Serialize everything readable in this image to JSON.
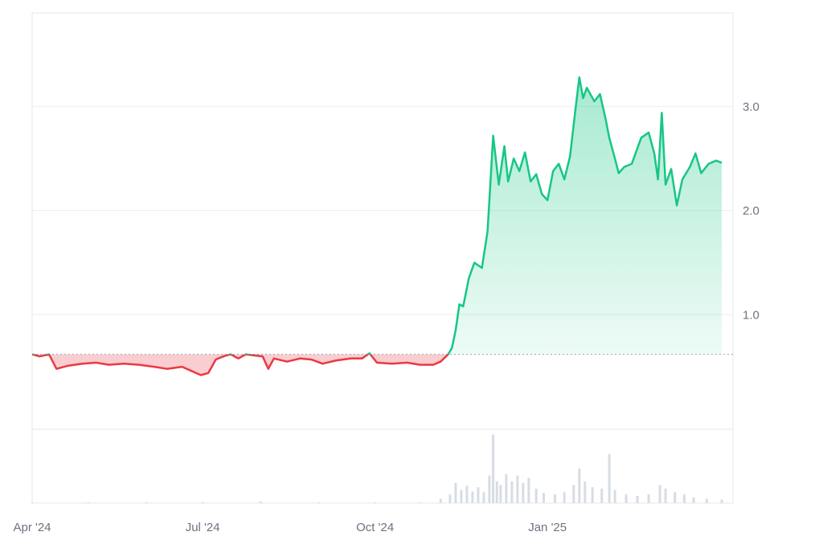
{
  "chart_data": {
    "type": "area",
    "baseline": 0.62,
    "ylim": [
      -0.1,
      3.9
    ],
    "y_ticks": [
      {
        "value": 1.0,
        "label": "1.0"
      },
      {
        "value": 2.0,
        "label": "2.0"
      },
      {
        "value": 3.0,
        "label": "3.0"
      }
    ],
    "x_range": [
      "2024-04-01",
      "2025-04-10"
    ],
    "x_ticks": [
      {
        "date": "2024-04-01",
        "label": "Apr '24"
      },
      {
        "date": "2024-07-01",
        "label": "Jul '24"
      },
      {
        "date": "2024-10-01",
        "label": "Oct '24"
      },
      {
        "date": "2025-01-01",
        "label": "Jan '25"
      }
    ],
    "grid": true,
    "colors": {
      "above": "#16c784",
      "below": "#ea3943"
    },
    "series": [
      {
        "kind": "price",
        "points": [
          [
            "2024-04-01",
            0.62
          ],
          [
            "2024-04-05",
            0.6
          ],
          [
            "2024-04-10",
            0.62
          ],
          [
            "2024-04-14",
            0.48
          ],
          [
            "2024-04-20",
            0.51
          ],
          [
            "2024-04-28",
            0.53
          ],
          [
            "2024-05-05",
            0.54
          ],
          [
            "2024-05-12",
            0.52
          ],
          [
            "2024-05-20",
            0.53
          ],
          [
            "2024-05-28",
            0.52
          ],
          [
            "2024-06-05",
            0.5
          ],
          [
            "2024-06-12",
            0.48
          ],
          [
            "2024-06-20",
            0.5
          ],
          [
            "2024-06-25",
            0.46
          ],
          [
            "2024-06-30",
            0.42
          ],
          [
            "2024-07-04",
            0.44
          ],
          [
            "2024-07-08",
            0.57
          ],
          [
            "2024-07-12",
            0.6
          ],
          [
            "2024-07-16",
            0.62
          ],
          [
            "2024-07-20",
            0.58
          ],
          [
            "2024-07-24",
            0.62
          ],
          [
            "2024-08-02",
            0.6
          ],
          [
            "2024-08-05",
            0.48
          ],
          [
            "2024-08-08",
            0.58
          ],
          [
            "2024-08-15",
            0.55
          ],
          [
            "2024-08-22",
            0.58
          ],
          [
            "2024-08-28",
            0.57
          ],
          [
            "2024-09-03",
            0.53
          ],
          [
            "2024-09-10",
            0.56
          ],
          [
            "2024-09-18",
            0.58
          ],
          [
            "2024-09-24",
            0.58
          ],
          [
            "2024-09-28",
            0.63
          ],
          [
            "2024-10-02",
            0.54
          ],
          [
            "2024-10-10",
            0.53
          ],
          [
            "2024-10-18",
            0.54
          ],
          [
            "2024-10-25",
            0.52
          ],
          [
            "2024-11-01",
            0.52
          ],
          [
            "2024-11-05",
            0.55
          ],
          [
            "2024-11-09",
            0.62
          ],
          [
            "2024-11-11",
            0.68
          ],
          [
            "2024-11-13",
            0.85
          ],
          [
            "2024-11-15",
            1.1
          ],
          [
            "2024-11-17",
            1.08
          ],
          [
            "2024-11-20",
            1.35
          ],
          [
            "2024-11-23",
            1.5
          ],
          [
            "2024-11-27",
            1.45
          ],
          [
            "2024-11-30",
            1.8
          ],
          [
            "2024-12-02",
            2.4
          ],
          [
            "2024-12-03",
            2.72
          ],
          [
            "2024-12-06",
            2.25
          ],
          [
            "2024-12-09",
            2.62
          ],
          [
            "2024-12-11",
            2.28
          ],
          [
            "2024-12-14",
            2.5
          ],
          [
            "2024-12-17",
            2.38
          ],
          [
            "2024-12-20",
            2.56
          ],
          [
            "2024-12-23",
            2.28
          ],
          [
            "2024-12-26",
            2.35
          ],
          [
            "2024-12-29",
            2.16
          ],
          [
            "2025-01-01",
            2.1
          ],
          [
            "2025-01-04",
            2.38
          ],
          [
            "2025-01-07",
            2.45
          ],
          [
            "2025-01-10",
            2.3
          ],
          [
            "2025-01-13",
            2.52
          ],
          [
            "2025-01-16",
            2.98
          ],
          [
            "2025-01-18",
            3.28
          ],
          [
            "2025-01-20",
            3.08
          ],
          [
            "2025-01-22",
            3.18
          ],
          [
            "2025-01-26",
            3.05
          ],
          [
            "2025-01-29",
            3.12
          ],
          [
            "2025-02-01",
            2.88
          ],
          [
            "2025-02-03",
            2.7
          ],
          [
            "2025-02-06",
            2.5
          ],
          [
            "2025-02-08",
            2.36
          ],
          [
            "2025-02-11",
            2.42
          ],
          [
            "2025-02-15",
            2.45
          ],
          [
            "2025-02-20",
            2.7
          ],
          [
            "2025-02-24",
            2.75
          ],
          [
            "2025-02-27",
            2.55
          ],
          [
            "2025-03-01",
            2.3
          ],
          [
            "2025-03-03",
            2.94
          ],
          [
            "2025-03-05",
            2.25
          ],
          [
            "2025-03-08",
            2.4
          ],
          [
            "2025-03-11",
            2.05
          ],
          [
            "2025-03-14",
            2.3
          ],
          [
            "2025-03-18",
            2.42
          ],
          [
            "2025-03-21",
            2.55
          ],
          [
            "2025-03-24",
            2.36
          ],
          [
            "2025-03-28",
            2.45
          ],
          [
            "2025-04-01",
            2.48
          ],
          [
            "2025-04-04",
            2.46
          ]
        ]
      },
      {
        "kind": "volume",
        "points": [
          [
            "2024-04-01",
            0.01
          ],
          [
            "2024-05-01",
            0.01
          ],
          [
            "2024-06-01",
            0.01
          ],
          [
            "2024-07-01",
            0.01
          ],
          [
            "2024-08-01",
            0.02
          ],
          [
            "2024-09-01",
            0.01
          ],
          [
            "2024-10-01",
            0.01
          ],
          [
            "2024-10-25",
            0.01
          ],
          [
            "2024-11-05",
            0.06
          ],
          [
            "2024-11-10",
            0.12
          ],
          [
            "2024-11-13",
            0.28
          ],
          [
            "2024-11-16",
            0.18
          ],
          [
            "2024-11-19",
            0.24
          ],
          [
            "2024-11-22",
            0.16
          ],
          [
            "2024-11-25",
            0.22
          ],
          [
            "2024-11-28",
            0.15
          ],
          [
            "2024-12-01",
            0.38
          ],
          [
            "2024-12-03",
            0.95
          ],
          [
            "2024-12-05",
            0.3
          ],
          [
            "2024-12-07",
            0.25
          ],
          [
            "2024-12-10",
            0.4
          ],
          [
            "2024-12-13",
            0.3
          ],
          [
            "2024-12-16",
            0.38
          ],
          [
            "2024-12-19",
            0.28
          ],
          [
            "2024-12-22",
            0.35
          ],
          [
            "2024-12-26",
            0.2
          ],
          [
            "2024-12-30",
            0.14
          ],
          [
            "2025-01-05",
            0.12
          ],
          [
            "2025-01-10",
            0.15
          ],
          [
            "2025-01-15",
            0.25
          ],
          [
            "2025-01-18",
            0.48
          ],
          [
            "2025-01-21",
            0.3
          ],
          [
            "2025-01-25",
            0.22
          ],
          [
            "2025-01-30",
            0.2
          ],
          [
            "2025-02-03",
            0.68
          ],
          [
            "2025-02-06",
            0.18
          ],
          [
            "2025-02-12",
            0.12
          ],
          [
            "2025-02-18",
            0.1
          ],
          [
            "2025-02-24",
            0.12
          ],
          [
            "2025-03-02",
            0.25
          ],
          [
            "2025-03-05",
            0.2
          ],
          [
            "2025-03-10",
            0.15
          ],
          [
            "2025-03-15",
            0.12
          ],
          [
            "2025-03-20",
            0.08
          ],
          [
            "2025-03-27",
            0.06
          ],
          [
            "2025-04-04",
            0.05
          ]
        ]
      }
    ]
  }
}
